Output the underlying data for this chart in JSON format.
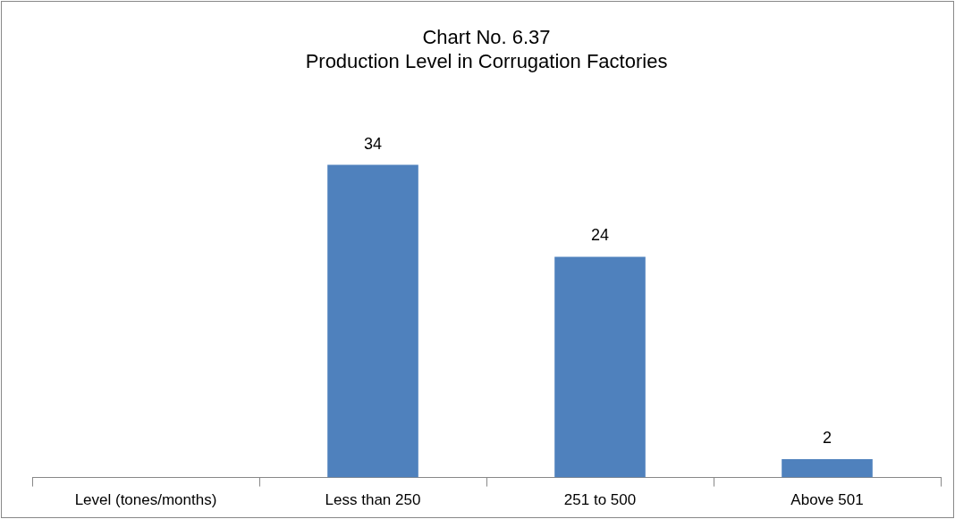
{
  "chart_data": {
    "type": "bar",
    "title": "Chart No. 6.37\nProduction Level in Corrugation Factories",
    "categories": [
      "Level (tones/months)",
      "Less than 250",
      "251 to 500",
      "Above 501"
    ],
    "values": [
      null,
      34,
      24,
      2
    ],
    "color": "#4f81bd",
    "data_labels": true,
    "grid": false,
    "legend": false,
    "tick_labels": "x"
  }
}
